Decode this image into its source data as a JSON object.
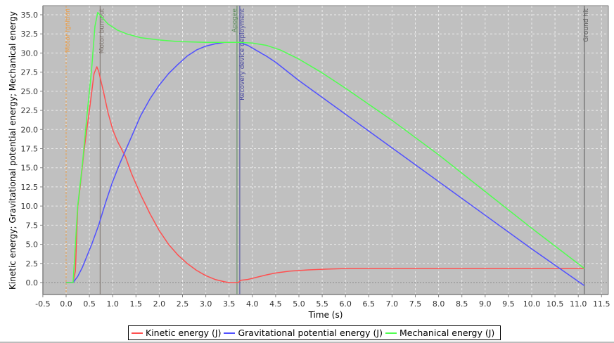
{
  "chart_data": {
    "type": "line",
    "title": "",
    "xlabel": "Time (s)",
    "ylabel": "Kinetic energy; Gravitational potential energy; Mechanical energy",
    "xlim": [
      -0.5,
      11.5
    ],
    "ylim": [
      -1.5,
      36.2
    ],
    "x_ticks": [
      "-0.5",
      "0.0",
      "0.5",
      "1.0",
      "1.5",
      "2.0",
      "2.5",
      "3.0",
      "3.5",
      "4.0",
      "4.5",
      "5.0",
      "5.5",
      "6.0",
      "6.5",
      "7.0",
      "7.5",
      "8.0",
      "8.5",
      "9.0",
      "9.5",
      "10.0",
      "10.5",
      "11.0",
      "11.5"
    ],
    "y_ticks": [
      "0.0",
      "2.5",
      "5.0",
      "7.5",
      "10.0",
      "12.5",
      "15.0",
      "17.5",
      "20.0",
      "22.5",
      "25.0",
      "27.5",
      "30.0",
      "32.5",
      "35.0"
    ],
    "grid": true,
    "legend_position": "bottom",
    "series": [
      {
        "name": "Kinetic energy (J)",
        "color": "#ff5050",
        "x": [
          0.0,
          0.15,
          0.2,
          0.25,
          0.3,
          0.4,
          0.5,
          0.6,
          0.66,
          0.7,
          0.8,
          0.9,
          1.0,
          1.1,
          1.27,
          1.4,
          1.6,
          1.8,
          2.0,
          2.2,
          2.4,
          2.6,
          2.8,
          3.0,
          3.2,
          3.4,
          3.5,
          3.7,
          3.75,
          3.9,
          4.1,
          4.3,
          4.5,
          4.8,
          5.2,
          5.6,
          6.1,
          7.0,
          8.0,
          9.0,
          10.0,
          11.13
        ],
        "y": [
          0.0,
          0.0,
          1.5,
          9.8,
          12.5,
          18.0,
          22.5,
          27.3,
          28.2,
          27.6,
          25.0,
          22.2,
          20.0,
          18.5,
          16.5,
          14.3,
          11.5,
          9.0,
          6.8,
          5.0,
          3.6,
          2.5,
          1.6,
          0.9,
          0.4,
          0.1,
          0.0,
          0.0,
          0.3,
          0.4,
          0.7,
          1.0,
          1.25,
          1.5,
          1.65,
          1.75,
          1.85,
          1.85,
          1.85,
          1.85,
          1.85,
          1.85
        ]
      },
      {
        "name": "Gravitational potential energy (J)",
        "color": "#5050ff",
        "x": [
          0.0,
          0.15,
          0.25,
          0.35,
          0.45,
          0.55,
          0.7,
          0.85,
          1.0,
          1.15,
          1.27,
          1.4,
          1.6,
          1.8,
          2.0,
          2.2,
          2.4,
          2.6,
          2.8,
          3.0,
          3.2,
          3.4,
          3.5,
          3.7,
          3.9,
          4.1,
          4.3,
          4.5,
          5.0,
          6.0,
          7.0,
          8.0,
          9.0,
          10.0,
          11.13
        ],
        "y": [
          0.0,
          0.0,
          0.8,
          2.0,
          3.5,
          5.0,
          7.5,
          10.5,
          13.2,
          15.5,
          17.2,
          19.0,
          21.8,
          24.0,
          25.8,
          27.3,
          28.5,
          29.6,
          30.4,
          30.9,
          31.2,
          31.4,
          31.4,
          31.4,
          31.0,
          30.3,
          29.6,
          28.8,
          26.4,
          22.0,
          17.6,
          13.2,
          8.8,
          4.4,
          -0.4
        ]
      },
      {
        "name": "Mechanical energy (J)",
        "color": "#50ff50",
        "x": [
          0.0,
          0.15,
          0.25,
          0.35,
          0.45,
          0.55,
          0.62,
          0.68,
          0.75,
          0.9,
          1.1,
          1.3,
          1.6,
          2.0,
          2.4,
          3.0,
          3.5,
          3.7,
          4.0,
          4.3,
          4.6,
          5.0,
          5.5,
          6.0,
          6.5,
          7.0,
          8.0,
          9.0,
          10.0,
          11.13
        ],
        "y": [
          0.0,
          0.0,
          10.0,
          15.5,
          22.0,
          28.0,
          33.5,
          35.3,
          34.8,
          33.8,
          33.0,
          32.5,
          32.0,
          31.7,
          31.5,
          31.4,
          31.4,
          31.4,
          31.3,
          31.0,
          30.4,
          29.2,
          27.4,
          25.4,
          23.3,
          21.2,
          16.7,
          11.9,
          7.1,
          1.85
        ]
      }
    ],
    "annotations": [
      {
        "label": "Motor ignition",
        "x": 0.0,
        "color": "#e8a050",
        "style": "dashed"
      },
      {
        "label": "Motor burnout",
        "x": 0.73,
        "color": "#7a706a",
        "style": "solid"
      },
      {
        "label": "Apogee",
        "x": 3.67,
        "color": "#5a8a5a",
        "style": "solid"
      },
      {
        "label": "Recovery device deployment",
        "x": 3.73,
        "color": "#4848a0",
        "style": "solid"
      },
      {
        "label": "Ground hit",
        "x": 11.13,
        "color": "#555555",
        "style": "solid"
      }
    ]
  },
  "legend": {
    "items": [
      {
        "label": "Kinetic energy (J)",
        "color": "#ff5050"
      },
      {
        "label": "Gravitational potential energy (J)",
        "color": "#5050ff"
      },
      {
        "label": "Mechanical energy (J)",
        "color": "#50ff50"
      }
    ]
  },
  "colors": {
    "plot_background": "#c0c0c0",
    "grid": "#e8e8e8",
    "page_background": "#ffffff"
  }
}
